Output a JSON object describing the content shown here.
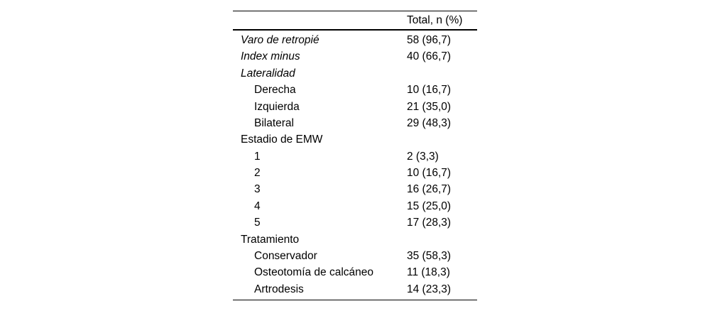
{
  "table": {
    "header": {
      "total_label": "Total, n (%)"
    },
    "rows": [
      {
        "label": "Varo de retropié",
        "value": "58 (96,7)",
        "emphasis": "italic",
        "indent": 0
      },
      {
        "label": "Index minus",
        "value": "40 (66,7)",
        "emphasis": "italic",
        "indent": 0
      },
      {
        "label": "Lateralidad",
        "value": "",
        "emphasis": "italic",
        "indent": 0
      },
      {
        "label": "Derecha",
        "value": "10 (16,7)",
        "emphasis": "normal",
        "indent": 1
      },
      {
        "label": "Izquierda",
        "value": "21 (35,0)",
        "emphasis": "normal",
        "indent": 1
      },
      {
        "label": "Bilateral",
        "value": "29 (48,3)",
        "emphasis": "normal",
        "indent": 1
      },
      {
        "label": "Estadio de EMW",
        "value": "",
        "emphasis": "normal",
        "indent": 0
      },
      {
        "label": "1",
        "value": "2 (3,3)",
        "emphasis": "normal",
        "indent": 1
      },
      {
        "label": "2",
        "value": "10 (16,7)",
        "emphasis": "normal",
        "indent": 1
      },
      {
        "label": "3",
        "value": "16 (26,7)",
        "emphasis": "normal",
        "indent": 1
      },
      {
        "label": "4",
        "value": "15 (25,0)",
        "emphasis": "normal",
        "indent": 1
      },
      {
        "label": "5",
        "value": "17 (28,3)",
        "emphasis": "normal",
        "indent": 1
      },
      {
        "label": "Tratamiento",
        "value": "",
        "emphasis": "normal",
        "indent": 0
      },
      {
        "label": "Conservador",
        "value": "35 (58,3)",
        "emphasis": "normal",
        "indent": 1
      },
      {
        "label": "Osteotomía de calcáneo",
        "value": "11 (18,3)",
        "emphasis": "normal",
        "indent": 1
      },
      {
        "label": "Artrodesis",
        "value": "14 (23,3)",
        "emphasis": "normal",
        "indent": 1
      }
    ],
    "colors": {
      "text": "#000000",
      "background": "#ffffff",
      "rule": "#000000"
    }
  }
}
